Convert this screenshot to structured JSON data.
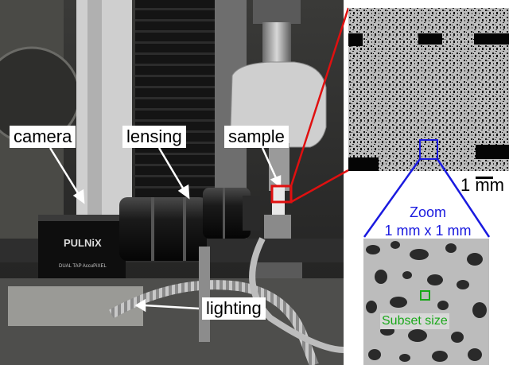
{
  "labels": {
    "camera": "camera",
    "lensing": "lensing",
    "sample": "sample",
    "lighting": "lighting"
  },
  "camera_brand": "PULNiX",
  "camera_model": "DUAL TAP AccuPiXEL",
  "scale_bar": "1 mm",
  "zoom": {
    "title": "Zoom",
    "size": "1 mm x 1 mm"
  },
  "subset_label": "Subset size",
  "colors": {
    "highlight_red": "#e01010",
    "zoom_blue": "#1a1adf",
    "subset_green": "#1aa81a"
  }
}
